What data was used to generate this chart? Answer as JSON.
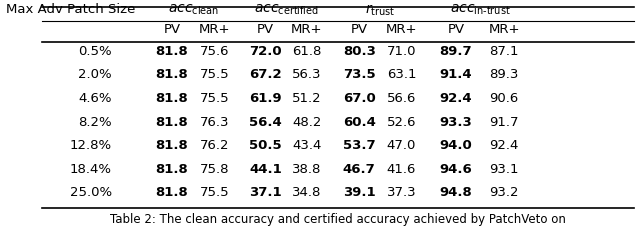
{
  "title_caption": "Table 2: The clean accuracy and certified accuracy achieved by PatchVeto on",
  "col_headers_row1": [
    "Max Adv Patch Size",
    "acc_clean",
    "",
    "acc_certified",
    "",
    "r_trust",
    "",
    "acc_in-trust",
    ""
  ],
  "col_headers_row2": [
    "",
    "PV",
    "MR+",
    "PV",
    "MR+",
    "PV",
    "MR+",
    "PV",
    "MR+"
  ],
  "rows": [
    [
      "0.5%",
      "81.8",
      "75.6",
      "72.0",
      "61.8",
      "80.3",
      "71.0",
      "89.7",
      "87.1"
    ],
    [
      "2.0%",
      "81.8",
      "75.5",
      "67.2",
      "56.3",
      "73.5",
      "63.1",
      "91.4",
      "89.3"
    ],
    [
      "4.6%",
      "81.8",
      "75.5",
      "61.9",
      "51.2",
      "67.0",
      "56.6",
      "92.4",
      "90.6"
    ],
    [
      "8.2%",
      "81.8",
      "76.3",
      "56.4",
      "48.2",
      "60.4",
      "52.6",
      "93.3",
      "91.7"
    ],
    [
      "12.8%",
      "81.8",
      "76.2",
      "50.5",
      "43.4",
      "53.7",
      "47.0",
      "94.0",
      "92.4"
    ],
    [
      "18.4%",
      "81.8",
      "75.8",
      "44.1",
      "38.8",
      "46.7",
      "41.6",
      "94.6",
      "93.1"
    ],
    [
      "25.0%",
      "81.8",
      "75.5",
      "37.1",
      "34.8",
      "39.1",
      "37.3",
      "94.8",
      "93.2"
    ]
  ],
  "bold_cols": [
    1,
    3,
    5,
    7
  ],
  "background_color": "#ffffff",
  "text_color": "#000000",
  "figsize": [
    6.4,
    2.49
  ],
  "dpi": 100
}
